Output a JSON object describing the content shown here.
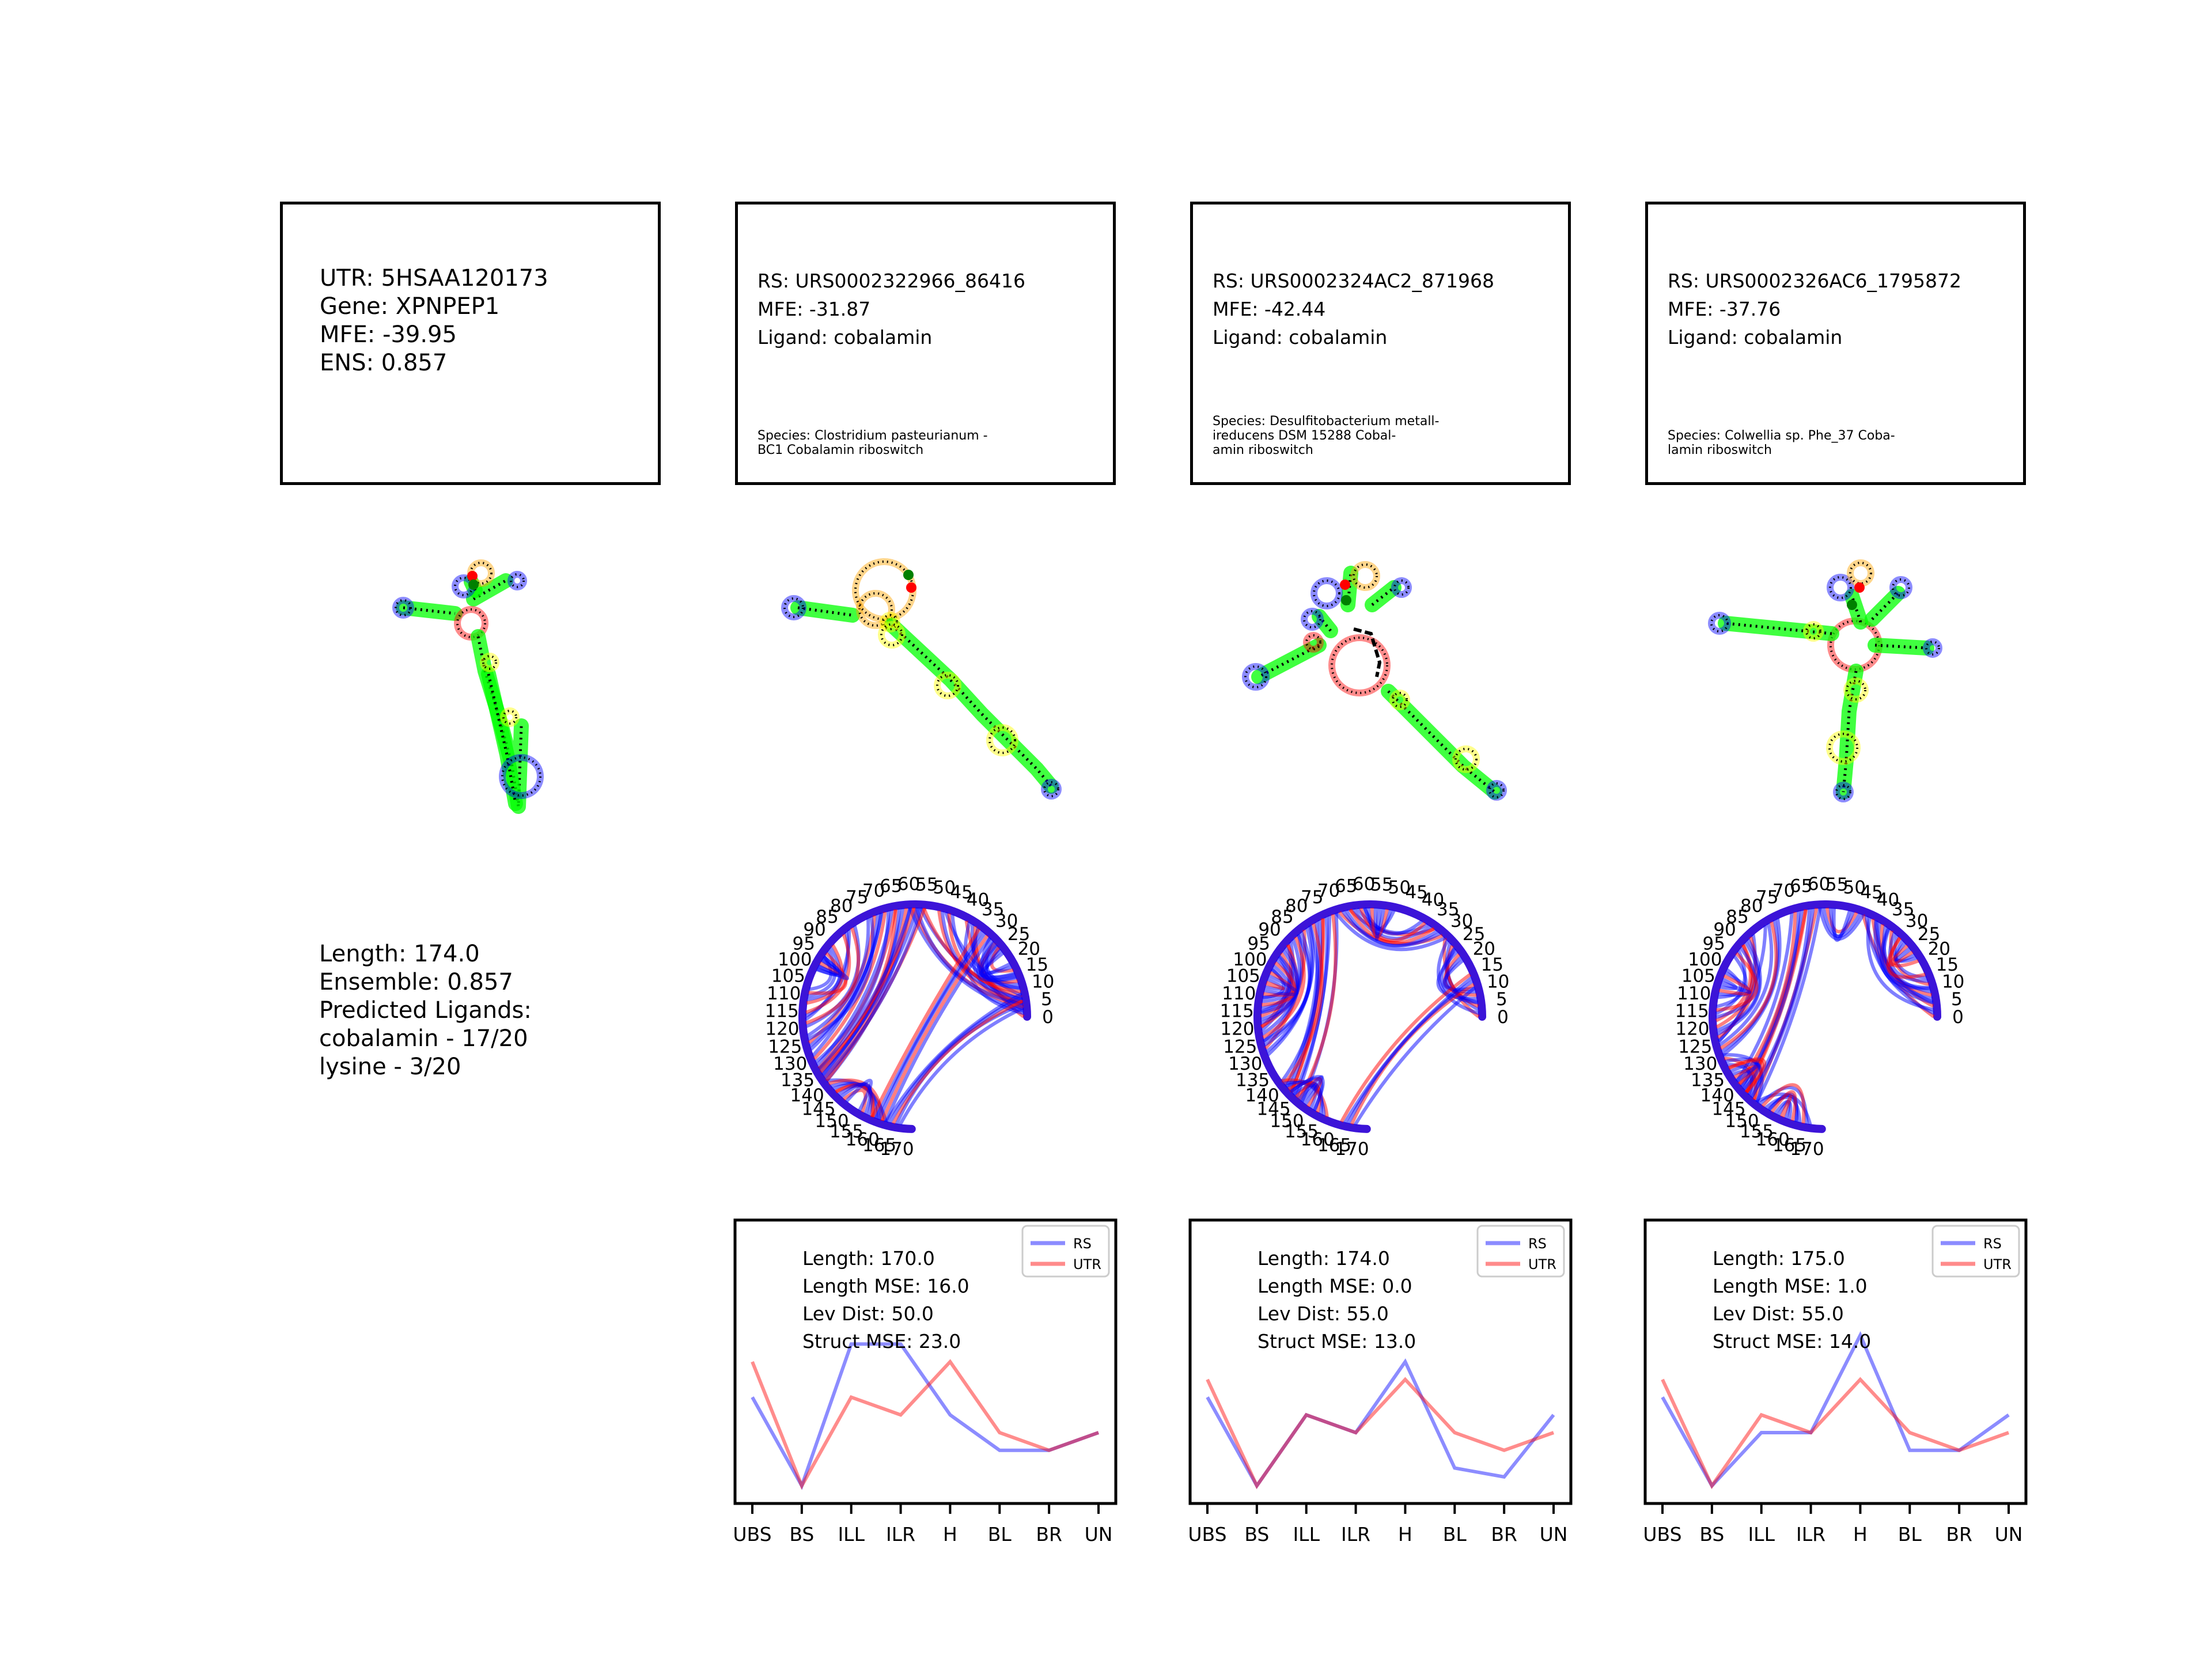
{
  "utr_box": {
    "lines": [
      "UTR: 5HSAA120173",
      "Gene: XPNPEP1",
      "MFE: -39.95",
      "ENS: 0.857"
    ]
  },
  "rs_boxes": [
    {
      "lines": [
        "RS: URS0002322966_86416",
        "MFE: -31.87",
        "Ligand: cobalamin"
      ],
      "species": [
        "Species: Clostridium pasteurianum -",
        "BC1 Cobalamin riboswitch"
      ]
    },
    {
      "lines": [
        "RS: URS0002324AC2_871968",
        "MFE: -42.44",
        "Ligand: cobalamin"
      ],
      "species": [
        "Species: Desulfitobacterium metall-",
        "ireducens DSM 15288 Cobal-",
        "amin riboswitch"
      ]
    },
    {
      "lines": [
        "RS: URS0002326AC6_1795872",
        "MFE: -37.76",
        "Ligand: cobalamin"
      ],
      "species": [
        "Species: Colwellia sp. Phe_37 Coba-",
        "lamin riboswitch"
      ]
    }
  ],
  "utr_info": {
    "lines": [
      "Length: 174.0",
      "Ensemble: 0.857",
      "Predicted Ligands:",
      "cobalamin - 17/20",
      "lysine - 3/20"
    ]
  },
  "arc_ticks": [
    "0",
    "5",
    "10",
    "15",
    "20",
    "25",
    "30",
    "35",
    "40",
    "45",
    "50",
    "55",
    "60",
    "65",
    "70",
    "75",
    "80",
    "85",
    "90",
    "95",
    "100",
    "105",
    "110",
    "115",
    "120",
    "125",
    "130",
    "135",
    "140",
    "145",
    "150",
    "155",
    "160",
    "165",
    "170"
  ],
  "colors": {
    "rs": "#0000ff",
    "utr": "#ff0000",
    "stem": "#00ff00",
    "hairpin": "#0000ff",
    "internal": "#ffa500",
    "bulge": "#ffff00",
    "multi": "#ff0000"
  },
  "chart_data": [
    {
      "type": "line",
      "categories": [
        "UBS",
        "BS",
        "ILL",
        "ILR",
        "H",
        "BL",
        "BR",
        "UN"
      ],
      "annotation": [
        "Length: 170.0",
        "Length MSE: 16.0",
        "Lev Dist: 50.0",
        "Struct MSE: 23.0"
      ],
      "series": [
        {
          "name": "RS",
          "values": [
            5,
            0,
            8,
            8,
            4,
            2,
            2,
            3
          ]
        },
        {
          "name": "UTR",
          "values": [
            7,
            0,
            5,
            4,
            7,
            3,
            2,
            3
          ]
        }
      ],
      "ylim": [
        -1,
        15
      ],
      "legend": "top-right"
    },
    {
      "type": "line",
      "categories": [
        "UBS",
        "BS",
        "ILL",
        "ILR",
        "H",
        "BL",
        "BR",
        "UN"
      ],
      "annotation": [
        "Length: 174.0",
        "Length MSE: 0.0",
        "Lev Dist: 55.0",
        "Struct MSE: 13.0"
      ],
      "series": [
        {
          "name": "RS",
          "values": [
            5,
            0,
            4,
            3,
            7,
            1,
            0.5,
            4
          ]
        },
        {
          "name": "UTR",
          "values": [
            6,
            0,
            4,
            3,
            6,
            3,
            2,
            3
          ]
        }
      ],
      "ylim": [
        -1,
        15
      ],
      "legend": "top-right"
    },
    {
      "type": "line",
      "categories": [
        "UBS",
        "BS",
        "ILL",
        "ILR",
        "H",
        "BL",
        "BR",
        "UN"
      ],
      "annotation": [
        "Length: 175.0",
        "Length MSE: 1.0",
        "Lev Dist: 55.0",
        "Struct MSE: 14.0"
      ],
      "series": [
        {
          "name": "RS",
          "values": [
            5,
            0,
            3,
            3,
            8.5,
            2,
            2,
            4
          ]
        },
        {
          "name": "UTR",
          "values": [
            6,
            0,
            4,
            3,
            6,
            3,
            2,
            3
          ]
        }
      ],
      "ylim": [
        -1,
        15
      ],
      "legend": "top-right"
    }
  ]
}
